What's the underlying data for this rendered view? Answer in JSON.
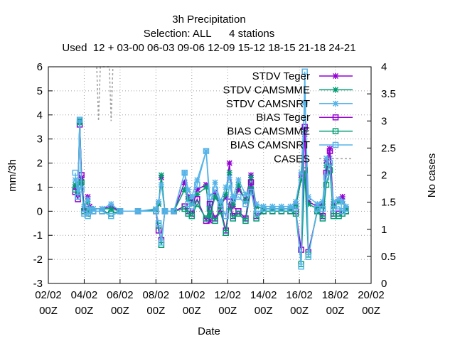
{
  "chart_data": {
    "type": "line",
    "title_lines": [
      "3h Precipitation",
      "Selection: ALL      4 stations",
      "Used  12 + 03-00 06-03 09-06 12-09 15-12 18-15 21-18 24-21"
    ],
    "xlabel": "Date",
    "ylabel": "mm/3h",
    "y2label": "No cases",
    "x_ticks": [
      {
        "x": 0,
        "l1": "02/02",
        "l2": "00Z"
      },
      {
        "x": 2,
        "l1": "04/02",
        "l2": "00Z"
      },
      {
        "x": 4,
        "l1": "06/02",
        "l2": "00Z"
      },
      {
        "x": 6,
        "l1": "08/02",
        "l2": "00Z"
      },
      {
        "x": 8,
        "l1": "10/02",
        "l2": "00Z"
      },
      {
        "x": 10,
        "l1": "12/02",
        "l2": "00Z"
      },
      {
        "x": 12,
        "l1": "14/02",
        "l2": "00Z"
      },
      {
        "x": 14,
        "l1": "16/02",
        "l2": "00Z"
      },
      {
        "x": 16,
        "l1": "18/02",
        "l2": "00Z"
      },
      {
        "x": 18,
        "l1": "20/02",
        "l2": "00Z"
      }
    ],
    "xlim": [
      0,
      18
    ],
    "ylim": [
      -3,
      6
    ],
    "y_ticks": [
      -3,
      -2,
      -1,
      0,
      1,
      2,
      3,
      4,
      5,
      6
    ],
    "y2lim": [
      0,
      4
    ],
    "y2_ticks": [
      "0",
      "0.5",
      "1",
      "1.5",
      "2",
      "2.5",
      "3",
      "3.5",
      "4"
    ],
    "grid": true,
    "legend_position": "top-right",
    "series": [
      {
        "name": "STDV Teger",
        "color": "#9400d3",
        "marker": "x",
        "axis": "y",
        "points": [
          [
            1.5,
            1.0
          ],
          [
            1.65,
            0.7
          ],
          [
            1.75,
            3.75
          ],
          [
            1.85,
            1.4
          ],
          [
            2.0,
            0.1
          ],
          [
            2.2,
            0.6
          ],
          [
            2.3,
            0.2
          ],
          [
            2.5,
            0.1
          ],
          [
            3.0,
            0.1
          ],
          [
            3.5,
            0.2
          ],
          [
            4.0,
            0.0
          ],
          [
            5.0,
            0.0
          ],
          [
            6.0,
            0.05
          ],
          [
            6.15,
            0.3
          ],
          [
            6.3,
            1.4
          ],
          [
            6.5,
            0.0
          ],
          [
            7.0,
            0.0
          ],
          [
            7.6,
            1.2
          ],
          [
            7.8,
            0.6
          ],
          [
            8.0,
            0.4
          ],
          [
            8.3,
            0.9
          ],
          [
            8.8,
            1.1
          ],
          [
            9.0,
            -0.4
          ],
          [
            9.3,
            0.8
          ],
          [
            9.6,
            0.2
          ],
          [
            9.9,
            0.6
          ],
          [
            10.1,
            2.0
          ],
          [
            10.3,
            0.2
          ],
          [
            10.6,
            0.9
          ],
          [
            11.0,
            0.5
          ],
          [
            11.3,
            1.5
          ],
          [
            11.6,
            0.2
          ],
          [
            12.0,
            0.1
          ],
          [
            12.5,
            0.1
          ],
          [
            13.0,
            0.1
          ],
          [
            13.5,
            0.1
          ],
          [
            13.8,
            0.3
          ],
          [
            14.1,
            1.5
          ],
          [
            14.3,
            3.2
          ],
          [
            14.5,
            0.4
          ],
          [
            15.0,
            0.2
          ],
          [
            15.3,
            0.3
          ],
          [
            15.5,
            2.1
          ],
          [
            15.7,
            2.6
          ],
          [
            15.9,
            0.3
          ],
          [
            16.2,
            0.5
          ],
          [
            16.4,
            0.6
          ],
          [
            16.6,
            0.1
          ]
        ]
      },
      {
        "name": "STDV CAMSMME",
        "color": "#009e73",
        "marker": "x",
        "axis": "y",
        "points": [
          [
            1.5,
            1.1
          ],
          [
            1.65,
            0.8
          ],
          [
            1.75,
            3.7
          ],
          [
            1.85,
            1.2
          ],
          [
            2.0,
            0.2
          ],
          [
            2.2,
            0.4
          ],
          [
            2.3,
            0.1
          ],
          [
            2.5,
            0.1
          ],
          [
            3.0,
            0.1
          ],
          [
            3.5,
            0.1
          ],
          [
            4.0,
            0.0
          ],
          [
            5.0,
            0.0
          ],
          [
            6.0,
            0.05
          ],
          [
            6.15,
            0.3
          ],
          [
            6.3,
            1.5
          ],
          [
            6.5,
            0.0
          ],
          [
            7.0,
            0.0
          ],
          [
            7.6,
            0.9
          ],
          [
            7.8,
            0.5
          ],
          [
            8.0,
            0.3
          ],
          [
            8.3,
            0.7
          ],
          [
            8.8,
            1.0
          ],
          [
            9.0,
            -0.2
          ],
          [
            9.3,
            0.6
          ],
          [
            9.6,
            0.2
          ],
          [
            9.9,
            0.7
          ],
          [
            10.1,
            1.6
          ],
          [
            10.3,
            0.3
          ],
          [
            10.6,
            1.1
          ],
          [
            11.0,
            0.4
          ],
          [
            11.3,
            1.4
          ],
          [
            11.6,
            0.2
          ],
          [
            12.0,
            0.1
          ],
          [
            12.5,
            0.1
          ],
          [
            13.0,
            0.1
          ],
          [
            13.5,
            0.1
          ],
          [
            13.8,
            0.2
          ],
          [
            14.1,
            1.3
          ],
          [
            14.3,
            3.4
          ],
          [
            14.5,
            0.3
          ],
          [
            15.0,
            0.1
          ],
          [
            15.3,
            0.2
          ],
          [
            15.5,
            1.9
          ],
          [
            15.7,
            1.9
          ],
          [
            15.9,
            0.2
          ],
          [
            16.2,
            0.4
          ],
          [
            16.4,
            0.4
          ],
          [
            16.6,
            0.1
          ]
        ]
      },
      {
        "name": "STDV CAMSNRT",
        "color": "#56b4e9",
        "marker": "x",
        "axis": "y",
        "points": [
          [
            1.5,
            1.3
          ],
          [
            1.65,
            0.9
          ],
          [
            1.75,
            3.8
          ],
          [
            1.85,
            1.0
          ],
          [
            2.0,
            0.2
          ],
          [
            2.2,
            0.5
          ],
          [
            2.3,
            0.1
          ],
          [
            2.5,
            0.1
          ],
          [
            3.0,
            0.1
          ],
          [
            3.5,
            0.3
          ],
          [
            4.0,
            0.0
          ],
          [
            5.0,
            0.0
          ],
          [
            6.0,
            0.1
          ],
          [
            6.15,
            0.4
          ],
          [
            6.3,
            1.1
          ],
          [
            6.5,
            0.0
          ],
          [
            7.0,
            0.0
          ],
          [
            7.6,
            1.6
          ],
          [
            7.8,
            0.9
          ],
          [
            8.0,
            0.6
          ],
          [
            8.3,
            1.3
          ],
          [
            8.8,
            2.5
          ],
          [
            9.0,
            0.2
          ],
          [
            9.3,
            1.2
          ],
          [
            9.6,
            0.4
          ],
          [
            9.9,
            1.0
          ],
          [
            10.1,
            1.4
          ],
          [
            10.3,
            0.6
          ],
          [
            10.6,
            1.3
          ],
          [
            11.0,
            0.7
          ],
          [
            11.3,
            1.0
          ],
          [
            11.6,
            0.3
          ],
          [
            12.0,
            0.2
          ],
          [
            12.5,
            0.2
          ],
          [
            13.0,
            0.2
          ],
          [
            13.5,
            0.2
          ],
          [
            13.8,
            0.4
          ],
          [
            14.1,
            1.6
          ],
          [
            14.3,
            4.5
          ],
          [
            14.5,
            0.6
          ],
          [
            15.0,
            0.3
          ],
          [
            15.3,
            0.4
          ],
          [
            15.5,
            2.2
          ],
          [
            15.7,
            2.2
          ],
          [
            15.9,
            0.4
          ],
          [
            16.2,
            0.5
          ],
          [
            16.4,
            0.4
          ],
          [
            16.6,
            0.2
          ]
        ]
      },
      {
        "name": "BIAS Teger",
        "color": "#9400d3",
        "marker": "square",
        "axis": "y",
        "points": [
          [
            1.5,
            0.8
          ],
          [
            1.65,
            0.5
          ],
          [
            1.75,
            3.6
          ],
          [
            1.85,
            1.5
          ],
          [
            2.0,
            0.0
          ],
          [
            2.2,
            -0.1
          ],
          [
            2.3,
            0.0
          ],
          [
            2.5,
            0.0
          ],
          [
            3.0,
            0.0
          ],
          [
            3.5,
            -0.1
          ],
          [
            4.0,
            0.0
          ],
          [
            5.0,
            0.0
          ],
          [
            6.0,
            0.0
          ],
          [
            6.15,
            -0.8
          ],
          [
            6.3,
            -1.2
          ],
          [
            6.5,
            0.0
          ],
          [
            7.0,
            0.0
          ],
          [
            7.6,
            0.2
          ],
          [
            7.8,
            0.0
          ],
          [
            8.0,
            -0.1
          ],
          [
            8.3,
            0.5
          ],
          [
            8.8,
            -0.4
          ],
          [
            9.0,
            0.3
          ],
          [
            9.3,
            -0.3
          ],
          [
            9.6,
            0.1
          ],
          [
            9.9,
            -0.8
          ],
          [
            10.1,
            0.4
          ],
          [
            10.3,
            -0.2
          ],
          [
            10.6,
            0.0
          ],
          [
            11.0,
            -0.3
          ],
          [
            11.3,
            1.2
          ],
          [
            11.6,
            -0.2
          ],
          [
            12.0,
            0.0
          ],
          [
            12.5,
            0.0
          ],
          [
            13.0,
            0.0
          ],
          [
            13.5,
            0.0
          ],
          [
            13.8,
            0.0
          ],
          [
            14.1,
            -1.6
          ],
          [
            14.3,
            3.5
          ],
          [
            14.5,
            -1.7
          ],
          [
            15.0,
            0.0
          ],
          [
            15.3,
            -0.2
          ],
          [
            15.5,
            1.6
          ],
          [
            15.7,
            2.5
          ],
          [
            15.9,
            -0.1
          ],
          [
            16.2,
            -0.1
          ],
          [
            16.4,
            0.0
          ],
          [
            16.6,
            0.0
          ]
        ]
      },
      {
        "name": "BIAS CAMSMME",
        "color": "#009e73",
        "marker": "square",
        "axis": "y",
        "points": [
          [
            1.5,
            0.9
          ],
          [
            1.65,
            0.6
          ],
          [
            1.75,
            3.7
          ],
          [
            1.85,
            1.2
          ],
          [
            2.0,
            0.0
          ],
          [
            2.2,
            -0.1
          ],
          [
            2.3,
            0.0
          ],
          [
            2.5,
            0.0
          ],
          [
            3.0,
            0.0
          ],
          [
            3.5,
            -0.1
          ],
          [
            4.0,
            0.0
          ],
          [
            5.0,
            0.0
          ],
          [
            6.0,
            0.0
          ],
          [
            6.15,
            -0.6
          ],
          [
            6.3,
            -1.4
          ],
          [
            6.5,
            0.0
          ],
          [
            7.0,
            0.0
          ],
          [
            7.6,
            0.1
          ],
          [
            7.8,
            -0.1
          ],
          [
            8.0,
            -0.2
          ],
          [
            8.3,
            0.3
          ],
          [
            8.8,
            -0.3
          ],
          [
            9.0,
            0.1
          ],
          [
            9.3,
            -0.4
          ],
          [
            9.6,
            0.0
          ],
          [
            9.9,
            -0.9
          ],
          [
            10.1,
            0.2
          ],
          [
            10.3,
            -0.3
          ],
          [
            10.6,
            -0.1
          ],
          [
            11.0,
            -0.4
          ],
          [
            11.3,
            0.9
          ],
          [
            11.6,
            -0.3
          ],
          [
            12.0,
            0.0
          ],
          [
            12.5,
            0.0
          ],
          [
            13.0,
            0.0
          ],
          [
            13.5,
            0.0
          ],
          [
            13.8,
            -0.1
          ],
          [
            14.1,
            -2.2
          ],
          [
            14.3,
            1.7
          ],
          [
            14.5,
            -1.8
          ],
          [
            15.0,
            0.0
          ],
          [
            15.3,
            -0.3
          ],
          [
            15.5,
            1.1
          ],
          [
            15.7,
            1.7
          ],
          [
            15.9,
            -0.2
          ],
          [
            16.2,
            -0.2
          ],
          [
            16.4,
            -0.1
          ],
          [
            16.6,
            0.0
          ]
        ]
      },
      {
        "name": "BIAS CAMSNRT",
        "color": "#56b4e9",
        "marker": "square",
        "axis": "y",
        "points": [
          [
            1.5,
            1.6
          ],
          [
            1.65,
            0.6
          ],
          [
            1.75,
            3.8
          ],
          [
            1.85,
            0.9
          ],
          [
            2.0,
            -0.1
          ],
          [
            2.2,
            -0.2
          ],
          [
            2.3,
            0.0
          ],
          [
            2.5,
            0.0
          ],
          [
            3.0,
            0.0
          ],
          [
            3.5,
            -0.2
          ],
          [
            4.0,
            0.0
          ],
          [
            5.0,
            0.0
          ],
          [
            6.0,
            0.0
          ],
          [
            6.15,
            -0.5
          ],
          [
            6.3,
            -1.3
          ],
          [
            6.5,
            0.0
          ],
          [
            7.0,
            0.0
          ],
          [
            7.6,
            1.6
          ],
          [
            7.8,
            0.3
          ],
          [
            8.0,
            0.2
          ],
          [
            8.3,
            1.1
          ],
          [
            8.8,
            2.5
          ],
          [
            9.0,
            0.6
          ],
          [
            9.3,
            0.9
          ],
          [
            9.6,
            0.3
          ],
          [
            9.9,
            -0.2
          ],
          [
            10.1,
            1.1
          ],
          [
            10.3,
            0.5
          ],
          [
            10.6,
            0.6
          ],
          [
            11.0,
            0.3
          ],
          [
            11.3,
            0.8
          ],
          [
            11.6,
            -0.1
          ],
          [
            12.0,
            0.1
          ],
          [
            12.5,
            0.1
          ],
          [
            13.0,
            0.1
          ],
          [
            13.5,
            0.1
          ],
          [
            13.8,
            0.2
          ],
          [
            14.1,
            -2.3
          ],
          [
            14.3,
            5.8
          ],
          [
            14.5,
            -1.9
          ],
          [
            15.0,
            0.1
          ],
          [
            15.3,
            0.1
          ],
          [
            15.5,
            1.4
          ],
          [
            15.7,
            2.0
          ],
          [
            15.9,
            0.1
          ],
          [
            16.2,
            0.2
          ],
          [
            16.4,
            0.0
          ],
          [
            16.6,
            0.1
          ]
        ]
      },
      {
        "name": "CASES",
        "color": "#a0a0a0",
        "marker": "none",
        "axis": "y2",
        "dashed": true,
        "points": [
          [
            2.7,
            4.0
          ],
          [
            2.8,
            3.0
          ],
          [
            2.9,
            4.0
          ],
          [
            3.4,
            4.0
          ],
          [
            3.5,
            3.0
          ],
          [
            3.6,
            4.0
          ]
        ]
      }
    ]
  }
}
